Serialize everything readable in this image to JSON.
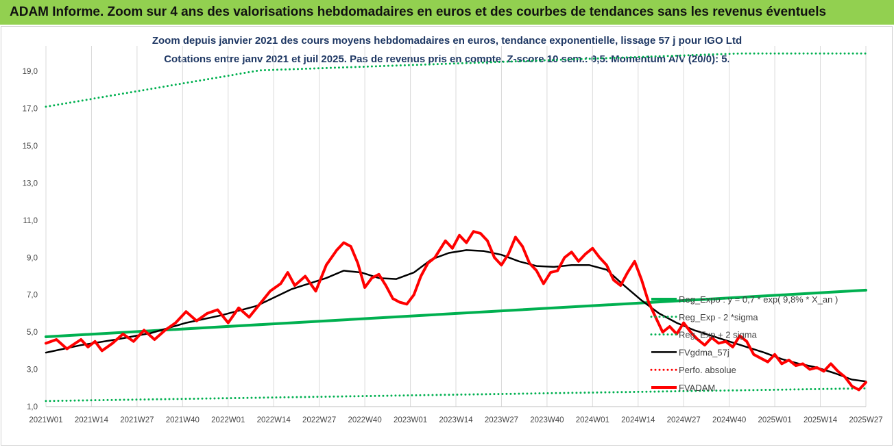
{
  "banner": {
    "title": "ADAM Informe. Zoom sur 4 ans des valorisations hebdomadaires en euros et des courbes de tendances sans les revenus éventuels",
    "color": "#92d050"
  },
  "chart_data": {
    "type": "line",
    "title": "Zoom depuis janvier 2021 des cours moyens hebdomadaires en euros, tendance exponentielle, lissage 57 j pour IGO Ltd",
    "subtitle": "Cotations entre janv 2021 et juil 2025. Pas de revenus pris en compte. Z-score 10 sem.: 0,5. Momentum A/V (20/0): 5.",
    "xlabel": "",
    "ylabel": "",
    "x_ticks": [
      "2021W01",
      "2021W14",
      "2021W27",
      "2021W40",
      "2022W01",
      "2022W14",
      "2022W27",
      "2022W40",
      "2023W01",
      "2023W14",
      "2023W27",
      "2023W40",
      "2024W01",
      "2024W14",
      "2024W27",
      "2024W40",
      "2025W01",
      "2025W14",
      "2025W27"
    ],
    "y_ticks": [
      "1,0",
      "3,0",
      "5,0",
      "7,0",
      "9,0",
      "11,0",
      "13,0",
      "15,0",
      "17,0",
      "19,0"
    ],
    "ylim": [
      1.0,
      20.0
    ],
    "x_range_weeks": [
      0,
      234
    ],
    "grid": "vertical",
    "legend_position": "right",
    "series": [
      {
        "name": "Reg_Expo : y = 0,7 * exp( 9,8% * X_an )",
        "style": "solid-thick",
        "color": "#00b050",
        "points": [
          [
            0,
            4.75
          ],
          [
            234,
            7.25
          ]
        ]
      },
      {
        "name": "Reg_Exp - 2 *sigma",
        "style": "dotted",
        "color": "#00b050",
        "points": [
          [
            0,
            1.3
          ],
          [
            234,
            1.98
          ]
        ]
      },
      {
        "name": "Reg_Exp + 2 sigma",
        "style": "dotted",
        "color": "#00b050",
        "points": [
          [
            0,
            17.1
          ],
          [
            61,
            19.05
          ],
          [
            198,
            19.96
          ],
          [
            234,
            19.96
          ]
        ]
      },
      {
        "name": "FVgdma_57j",
        "style": "solid",
        "color": "#000000",
        "points": [
          [
            0,
            3.9
          ],
          [
            10,
            4.3
          ],
          [
            20,
            4.6
          ],
          [
            30,
            4.95
          ],
          [
            40,
            5.5
          ],
          [
            50,
            5.9
          ],
          [
            60,
            6.4
          ],
          [
            70,
            7.3
          ],
          [
            80,
            7.9
          ],
          [
            85,
            8.3
          ],
          [
            90,
            8.2
          ],
          [
            95,
            7.9
          ],
          [
            100,
            7.85
          ],
          [
            105,
            8.2
          ],
          [
            110,
            8.9
          ],
          [
            115,
            9.25
          ],
          [
            120,
            9.4
          ],
          [
            125,
            9.35
          ],
          [
            130,
            9.15
          ],
          [
            135,
            8.8
          ],
          [
            140,
            8.55
          ],
          [
            145,
            8.5
          ],
          [
            150,
            8.6
          ],
          [
            155,
            8.6
          ],
          [
            160,
            8.35
          ],
          [
            165,
            7.5
          ],
          [
            170,
            6.7
          ],
          [
            175,
            6.0
          ],
          [
            180,
            5.5
          ],
          [
            185,
            5.1
          ],
          [
            190,
            4.8
          ],
          [
            195,
            4.5
          ],
          [
            200,
            4.2
          ],
          [
            205,
            3.9
          ],
          [
            210,
            3.55
          ],
          [
            215,
            3.3
          ],
          [
            220,
            3.1
          ],
          [
            225,
            2.8
          ],
          [
            230,
            2.45
          ],
          [
            234,
            2.35
          ]
        ]
      },
      {
        "name": "Perfo. absolue",
        "style": "dotted",
        "color": "#ff0000",
        "points": []
      },
      {
        "name": "FVADAM",
        "style": "solid-thick",
        "color": "#ff0000",
        "points": [
          [
            0,
            4.4
          ],
          [
            3,
            4.6
          ],
          [
            6,
            4.1
          ],
          [
            10,
            4.6
          ],
          [
            12,
            4.2
          ],
          [
            14,
            4.5
          ],
          [
            16,
            4.0
          ],
          [
            19,
            4.4
          ],
          [
            22,
            4.9
          ],
          [
            25,
            4.5
          ],
          [
            28,
            5.1
          ],
          [
            31,
            4.6
          ],
          [
            34,
            5.1
          ],
          [
            37,
            5.5
          ],
          [
            40,
            6.1
          ],
          [
            43,
            5.6
          ],
          [
            46,
            6.0
          ],
          [
            49,
            6.2
          ],
          [
            52,
            5.5
          ],
          [
            55,
            6.3
          ],
          [
            58,
            5.8
          ],
          [
            61,
            6.5
          ],
          [
            64,
            7.2
          ],
          [
            67,
            7.6
          ],
          [
            69,
            8.2
          ],
          [
            71,
            7.5
          ],
          [
            74,
            8.0
          ],
          [
            77,
            7.2
          ],
          [
            80,
            8.6
          ],
          [
            83,
            9.4
          ],
          [
            85,
            9.8
          ],
          [
            87,
            9.6
          ],
          [
            89,
            8.7
          ],
          [
            91,
            7.4
          ],
          [
            93,
            7.9
          ],
          [
            95,
            8.1
          ],
          [
            97,
            7.5
          ],
          [
            99,
            6.8
          ],
          [
            101,
            6.6
          ],
          [
            103,
            6.5
          ],
          [
            105,
            7.0
          ],
          [
            107,
            8.0
          ],
          [
            109,
            8.7
          ],
          [
            111,
            9.0
          ],
          [
            114,
            9.9
          ],
          [
            116,
            9.5
          ],
          [
            118,
            10.2
          ],
          [
            120,
            9.8
          ],
          [
            122,
            10.4
          ],
          [
            124,
            10.3
          ],
          [
            126,
            9.9
          ],
          [
            128,
            9.0
          ],
          [
            130,
            8.6
          ],
          [
            132,
            9.2
          ],
          [
            134,
            10.1
          ],
          [
            136,
            9.6
          ],
          [
            138,
            8.7
          ],
          [
            140,
            8.3
          ],
          [
            142,
            7.6
          ],
          [
            144,
            8.2
          ],
          [
            146,
            8.3
          ],
          [
            148,
            9.0
          ],
          [
            150,
            9.3
          ],
          [
            152,
            8.8
          ],
          [
            154,
            9.2
          ],
          [
            156,
            9.5
          ],
          [
            158,
            9.0
          ],
          [
            160,
            8.6
          ],
          [
            162,
            7.8
          ],
          [
            164,
            7.5
          ],
          [
            166,
            8.2
          ],
          [
            168,
            8.8
          ],
          [
            170,
            7.8
          ],
          [
            172,
            6.6
          ],
          [
            174,
            5.8
          ],
          [
            176,
            5.0
          ],
          [
            178,
            5.3
          ],
          [
            180,
            4.9
          ],
          [
            182,
            5.5
          ],
          [
            184,
            5.0
          ],
          [
            186,
            4.6
          ],
          [
            188,
            4.3
          ],
          [
            190,
            4.7
          ],
          [
            192,
            4.4
          ],
          [
            194,
            4.5
          ],
          [
            196,
            4.2
          ],
          [
            198,
            4.8
          ],
          [
            200,
            4.5
          ],
          [
            202,
            3.8
          ],
          [
            204,
            3.6
          ],
          [
            206,
            3.4
          ],
          [
            208,
            3.8
          ],
          [
            210,
            3.3
          ],
          [
            212,
            3.5
          ],
          [
            214,
            3.2
          ],
          [
            216,
            3.3
          ],
          [
            218,
            3.0
          ],
          [
            220,
            3.1
          ],
          [
            222,
            2.9
          ],
          [
            224,
            3.3
          ],
          [
            226,
            2.9
          ],
          [
            228,
            2.6
          ],
          [
            230,
            2.1
          ],
          [
            232,
            1.9
          ],
          [
            234,
            2.3
          ]
        ]
      }
    ]
  }
}
